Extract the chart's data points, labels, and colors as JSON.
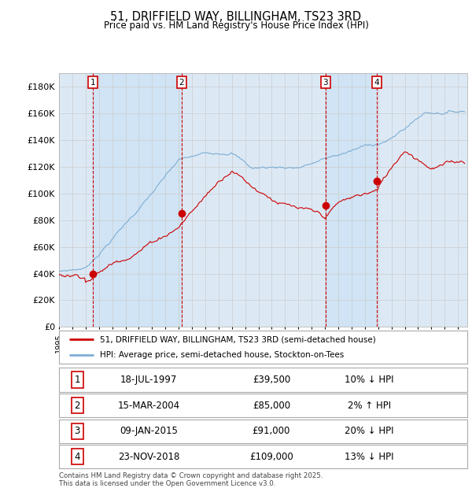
{
  "title": "51, DRIFFIELD WAY, BILLINGHAM, TS23 3RD",
  "subtitle": "Price paid vs. HM Land Registry's House Price Index (HPI)",
  "ylim": [
    0,
    190000
  ],
  "yticks": [
    0,
    20000,
    40000,
    60000,
    80000,
    100000,
    120000,
    140000,
    160000,
    180000
  ],
  "ytick_labels": [
    "£0",
    "£20K",
    "£40K",
    "£60K",
    "£80K",
    "£100K",
    "£120K",
    "£140K",
    "£160K",
    "£180K"
  ],
  "sale_color": "#cc0000",
  "hpi_color": "#7dadd4",
  "background_color": "#dce9f5",
  "plot_bg_color": "#ffffff",
  "grid_color": "#cccccc",
  "vline_color": "#cc0000",
  "shade_color": "#d0e4f5",
  "sale_years_float": [
    1997.54,
    2004.21,
    2015.03,
    2018.9
  ],
  "sale_prices": [
    39500,
    85000,
    91000,
    109000
  ],
  "sale_labels": [
    "1",
    "2",
    "3",
    "4"
  ],
  "sale_info": [
    {
      "num": "1",
      "date": "18-JUL-1997",
      "price": "£39,500",
      "hpi_diff": "10% ↓ HPI"
    },
    {
      "num": "2",
      "date": "15-MAR-2004",
      "price": "£85,000",
      "hpi_diff": "2% ↑ HPI"
    },
    {
      "num": "3",
      "date": "09-JAN-2015",
      "price": "£91,000",
      "hpi_diff": "20% ↓ HPI"
    },
    {
      "num": "4",
      "date": "23-NOV-2018",
      "price": "£109,000",
      "hpi_diff": "13% ↓ HPI"
    }
  ],
  "legend_entries": [
    "51, DRIFFIELD WAY, BILLINGHAM, TS23 3RD (semi-detached house)",
    "HPI: Average price, semi-detached house, Stockton-on-Tees"
  ],
  "footer": "Contains HM Land Registry data © Crown copyright and database right 2025.\nThis data is licensed under the Open Government Licence v3.0."
}
